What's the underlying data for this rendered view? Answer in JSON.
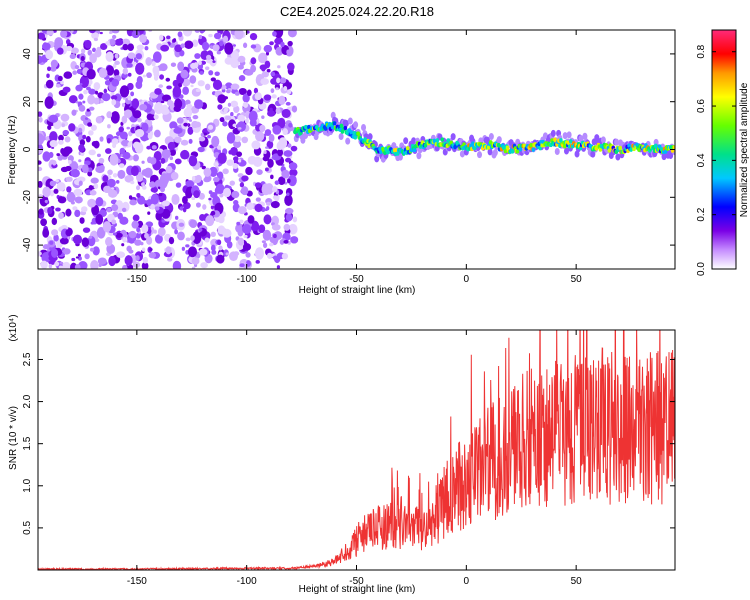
{
  "chart_data": [
    {
      "type": "heatmap",
      "title": "C2E4.2025.024.22.20.R18",
      "xlabel": "Height of straight line (km)",
      "ylabel": "Frequency (Hz)",
      "xlim": [
        -195,
        95
      ],
      "ylim": [
        -50,
        50
      ],
      "x_ticks": [
        "-150",
        "-100",
        "-50",
        "0",
        "50"
      ],
      "y_ticks": [
        "-40",
        "-20",
        "0",
        "20",
        "40"
      ],
      "grid": false,
      "colorbar": {
        "label": "Normalized spectral amplitude",
        "range": [
          0.0,
          0.88
        ],
        "ticks": [
          "0.0",
          "0.2",
          "0.4",
          "0.6",
          "0.8"
        ]
      },
      "noise_region_x": [
        -195,
        -78
      ],
      "signal_track": {
        "x": [
          -78,
          -70,
          -60,
          -55,
          -50,
          -45,
          -40,
          -30,
          -20,
          -10,
          0,
          10,
          20,
          30,
          40,
          50,
          60,
          70,
          80,
          90,
          95
        ],
        "y": [
          7,
          9,
          10,
          8,
          6,
          3,
          0,
          -1,
          2,
          3,
          1,
          2,
          0,
          1,
          3,
          2,
          1,
          0,
          1,
          0,
          0
        ]
      }
    },
    {
      "type": "line",
      "title": "",
      "xlabel": "Height of straight line (km)",
      "ylabel": "SNR (10 * v/v)",
      "y_multiplier": "(x10⁴)",
      "xlim": [
        -195,
        95
      ],
      "ylim": [
        0,
        2.85
      ],
      "x_ticks": [
        "-150",
        "-100",
        "-50",
        "0",
        "50"
      ],
      "y_ticks": [
        "0.5",
        "1.0",
        "1.5",
        "2.0",
        "2.5"
      ],
      "grid": false,
      "series": [
        {
          "color": "#ee3333",
          "x": [
            -195,
            -150,
            -100,
            -80,
            -70,
            -60,
            -55,
            -50,
            -45,
            -40,
            -35,
            -30,
            -25,
            -20,
            -15,
            -10,
            -5,
            0,
            5,
            10,
            15,
            20,
            25,
            30,
            35,
            40,
            45,
            50,
            55,
            60,
            65,
            70,
            75,
            80,
            85,
            90,
            95
          ],
          "y": [
            0.01,
            0.01,
            0.02,
            0.02,
            0.04,
            0.1,
            0.22,
            0.35,
            0.45,
            0.5,
            0.55,
            0.5,
            0.48,
            0.5,
            0.52,
            0.8,
            0.95,
            1.1,
            1.15,
            1.25,
            1.35,
            1.45,
            1.5,
            1.55,
            1.6,
            1.65,
            1.68,
            1.7,
            1.65,
            1.72,
            1.7,
            1.68,
            1.7,
            1.65,
            1.7,
            1.68,
            1.7
          ]
        }
      ]
    }
  ]
}
